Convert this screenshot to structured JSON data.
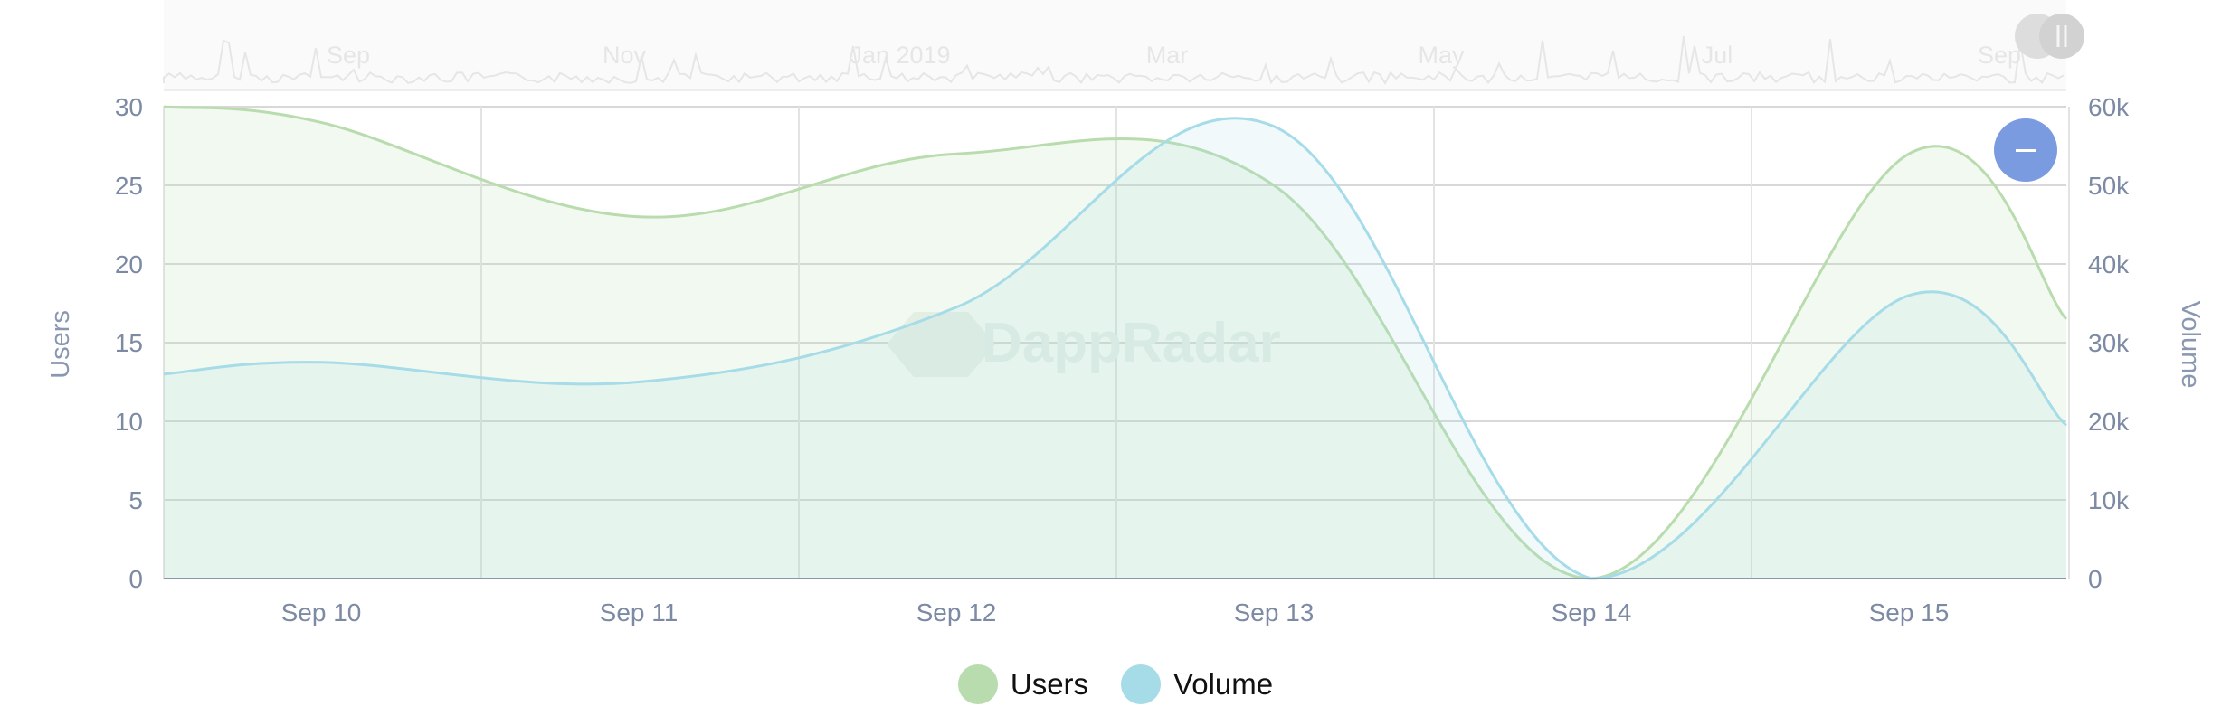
{
  "chart_data": {
    "type": "area",
    "x": [
      "Sep 9.5",
      "Sep 10",
      "Sep 11",
      "Sep 12",
      "Sep 13",
      "Sep 14",
      "Sep 15",
      "Sep 15.5"
    ],
    "x_ticks": [
      "Sep 10",
      "Sep 11",
      "Sep 12",
      "Sep 13",
      "Sep 14",
      "Sep 15"
    ],
    "series": [
      {
        "name": "Users",
        "axis": "left",
        "color": "#b9dcae",
        "values": [
          30,
          29,
          23,
          27,
          25,
          0,
          27,
          16.5
        ]
      },
      {
        "name": "Volume",
        "axis": "right",
        "color": "#a6dce8",
        "values": [
          26000,
          27500,
          25000,
          34500,
          57500,
          0,
          36000,
          19500
        ]
      }
    ],
    "y_left": {
      "label": "Users",
      "ticks": [
        "0",
        "5",
        "10",
        "15",
        "20",
        "25",
        "30"
      ],
      "range": [
        0,
        30
      ]
    },
    "y_right": {
      "label": "Volume",
      "ticks": [
        "0",
        "10k",
        "20k",
        "30k",
        "40k",
        "50k",
        "60k"
      ],
      "range": [
        0,
        60000
      ]
    },
    "navigator": {
      "labels": [
        "Sep",
        "Nov",
        "Jan 2019",
        "Mar",
        "May",
        "Jul",
        "Sep"
      ]
    },
    "watermark": "DappRadar",
    "grid": true,
    "legend_position": "bottom-center"
  },
  "legend": [
    {
      "label": "Users",
      "color": "#b9dcae"
    },
    {
      "label": "Volume",
      "color": "#a6dce8"
    }
  ],
  "zoom_button": {
    "icon": "minus-icon"
  }
}
